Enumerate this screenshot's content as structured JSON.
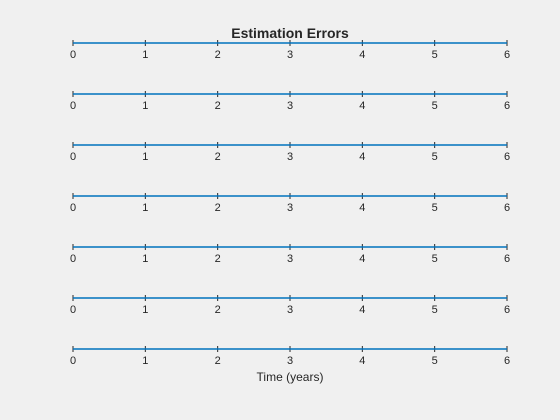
{
  "chart_data": {
    "type": "line",
    "title": "Estimation Errors",
    "xlabel": "Time (years)",
    "ylabel": "",
    "xlim": [
      0,
      6
    ],
    "xticks": [
      0,
      1,
      2,
      3,
      4,
      5,
      6
    ],
    "xtick_labels": [
      "0",
      "1",
      "2",
      "3",
      "4",
      "5",
      "6"
    ],
    "grid": false,
    "legend": "none",
    "line_color": "#0072bd",
    "axis_color": "#262626",
    "background": "#f0f0f0",
    "panels": [
      {
        "x": [
          0,
          1,
          2,
          3,
          4,
          5,
          6
        ],
        "y": [
          0,
          0,
          0,
          0,
          0,
          0,
          0
        ]
      },
      {
        "x": [
          0,
          1,
          2,
          3,
          4,
          5,
          6
        ],
        "y": [
          0,
          0,
          0,
          0,
          0,
          0,
          0
        ]
      },
      {
        "x": [
          0,
          1,
          2,
          3,
          4,
          5,
          6
        ],
        "y": [
          0,
          0,
          0,
          0,
          0,
          0,
          0
        ]
      },
      {
        "x": [
          0,
          1,
          2,
          3,
          4,
          5,
          6
        ],
        "y": [
          0,
          0,
          0,
          0,
          0,
          0,
          0
        ]
      },
      {
        "x": [
          0,
          1,
          2,
          3,
          4,
          5,
          6
        ],
        "y": [
          0,
          0,
          0,
          0,
          0,
          0,
          0
        ]
      },
      {
        "x": [
          0,
          1,
          2,
          3,
          4,
          5,
          6
        ],
        "y": [
          0,
          0,
          0,
          0,
          0,
          0,
          0
        ]
      },
      {
        "x": [
          0,
          1,
          2,
          3,
          4,
          5,
          6
        ],
        "y": [
          0,
          0,
          0,
          0,
          0,
          0,
          0
        ]
      }
    ]
  }
}
